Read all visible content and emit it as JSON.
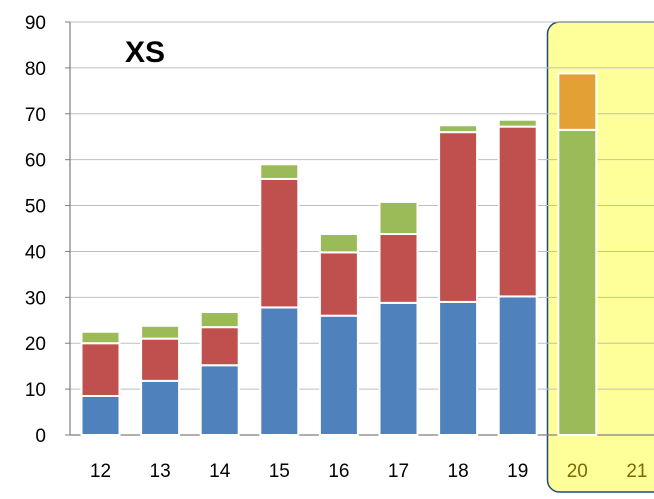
{
  "chart_data": {
    "type": "bar",
    "stacked": true,
    "title": "XS",
    "xlabel": "",
    "ylabel": "",
    "categories": [
      "12",
      "13",
      "14",
      "15",
      "16",
      "17",
      "18",
      "19",
      "20",
      "21"
    ],
    "ylim": [
      0,
      90
    ],
    "yticks": [
      0,
      10,
      20,
      30,
      40,
      50,
      60,
      70,
      80,
      90
    ],
    "grid": true,
    "legend": "none",
    "series": [
      {
        "color": "#4f81bd",
        "values": [
          8.5,
          11.8,
          15.2,
          27.8,
          26.0,
          28.8,
          29.0,
          30.2,
          null,
          null
        ]
      },
      {
        "color": "#c0504d",
        "values": [
          11.5,
          9.2,
          8.3,
          28.0,
          13.8,
          15.0,
          37.0,
          37.0,
          null,
          null
        ]
      },
      {
        "color": "#9bbb59",
        "values": [
          2.5,
          2.8,
          3.3,
          3.2,
          4.0,
          7.0,
          1.5,
          1.5,
          66.5,
          null
        ]
      },
      {
        "color": "#e3a034",
        "values": [
          null,
          null,
          null,
          null,
          null,
          null,
          null,
          null,
          12.3,
          null
        ]
      }
    ],
    "highlight": {
      "categories": [
        "20",
        "21"
      ],
      "fill": "#ffff99",
      "border": "#1f497d"
    },
    "colors": {
      "grid": "#bfbfbf",
      "axis": "#7f7f7f",
      "bar_outline": "#ffffff"
    }
  }
}
